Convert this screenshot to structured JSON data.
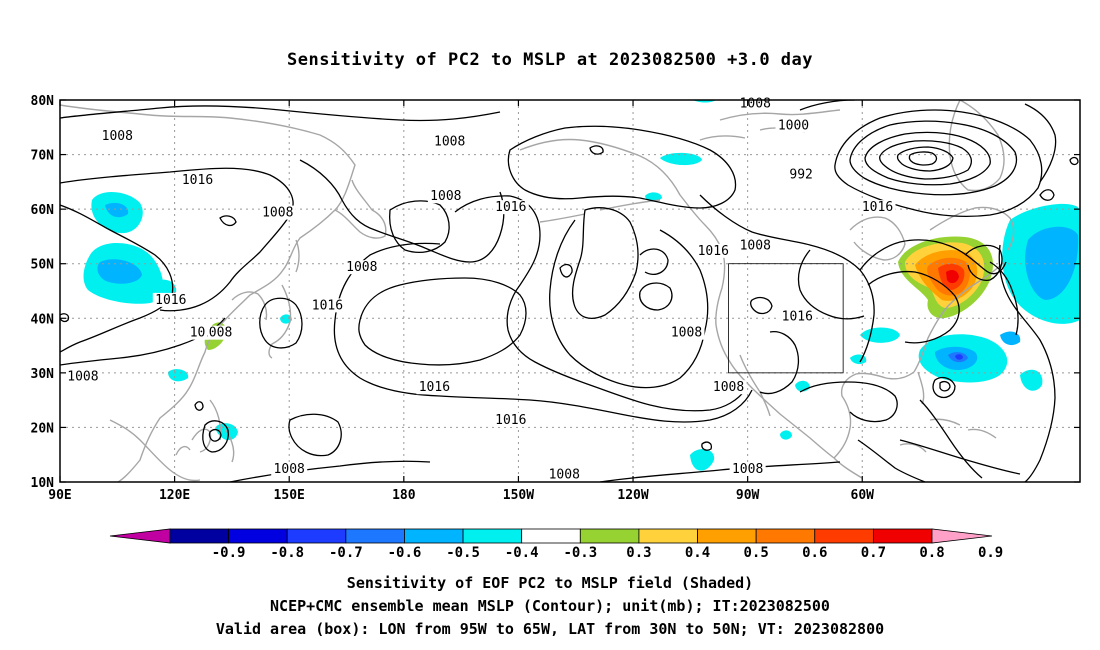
{
  "title": "Sensitivity of PC2 to MSLP at 2023082500 +3.0 day",
  "map": {
    "lon_labels": [
      "90E",
      "120E",
      "150E",
      "180",
      "150W",
      "120W",
      "90W",
      "60W"
    ],
    "lat_labels": [
      "80N",
      "70N",
      "60N",
      "50N",
      "40N",
      "30N",
      "20N",
      "10N"
    ],
    "contour_labels": [
      {
        "text": "1008",
        "lon": 105,
        "lat": 73
      },
      {
        "text": "1016",
        "lon": 126,
        "lat": 65
      },
      {
        "text": "1008",
        "lon": 147,
        "lat": 59
      },
      {
        "text": "1008",
        "lon": 169,
        "lat": 49
      },
      {
        "text": "1016",
        "lon": 160,
        "lat": 42
      },
      {
        "text": "1016",
        "lon": 119,
        "lat": 43
      },
      {
        "text": "1008",
        "lon": 96,
        "lat": 29
      },
      {
        "text": "1008",
        "lon": 131,
        "lat": 37
      },
      {
        "text": "10",
        "lon": 126,
        "lat": 37
      },
      {
        "text": "1008",
        "lon": -168,
        "lat": 72
      },
      {
        "text": "1008",
        "lon": -169,
        "lat": 62
      },
      {
        "text": "1016",
        "lon": -152,
        "lat": 60
      },
      {
        "text": "1016",
        "lon": -172,
        "lat": 27
      },
      {
        "text": "1016",
        "lon": -152,
        "lat": 21
      },
      {
        "text": "1008",
        "lon": -138,
        "lat": 11
      },
      {
        "text": "1008",
        "lon": -106,
        "lat": 37
      },
      {
        "text": "1008",
        "lon": -95,
        "lat": 27
      },
      {
        "text": "1008",
        "lon": -90,
        "lat": 12
      },
      {
        "text": "1016",
        "lon": -99,
        "lat": 52
      },
      {
        "text": "1008",
        "lon": -88,
        "lat": 79
      },
      {
        "text": "1000",
        "lon": -78,
        "lat": 75
      },
      {
        "text": "992",
        "lon": -76,
        "lat": 66
      },
      {
        "text": "1008",
        "lon": -88,
        "lat": 53
      },
      {
        "text": "1016",
        "lon": -77,
        "lat": 40
      },
      {
        "text": "1016",
        "lon": -56,
        "lat": 60
      },
      {
        "text": "1008",
        "lon": 150,
        "lat": 12
      }
    ],
    "valid_box": {
      "lon_west": -95,
      "lon_east": -65,
      "lat_south": 30,
      "lat_north": 50
    }
  },
  "colorbar": {
    "labels": [
      "-0.9",
      "-0.8",
      "-0.7",
      "-0.6",
      "-0.5",
      "-0.4",
      "-0.3",
      "0.3",
      "0.4",
      "0.5",
      "0.6",
      "0.7",
      "0.8",
      "0.9"
    ],
    "colors": [
      "#0000a0",
      "#0000e0",
      "#1e3cff",
      "#1e78ff",
      "#00b4ff",
      "#00f0f0",
      "#ffffff",
      "#96d232",
      "#ffd23c",
      "#ffa000",
      "#ff7800",
      "#ff3c00",
      "#f00000"
    ],
    "low_end_color": "#c000a0",
    "high_end_color": "#ffa0c8"
  },
  "captions": [
    "Sensitivity of EOF PC2 to MSLP field (Shaded)",
    "NCEP+CMC ensemble mean MSLP (Contour); unit(mb); IT:2023082500",
    "Valid area (box): LON from 95W to 65W, LAT from 30N to 50N; VT: 2023082800"
  ]
}
